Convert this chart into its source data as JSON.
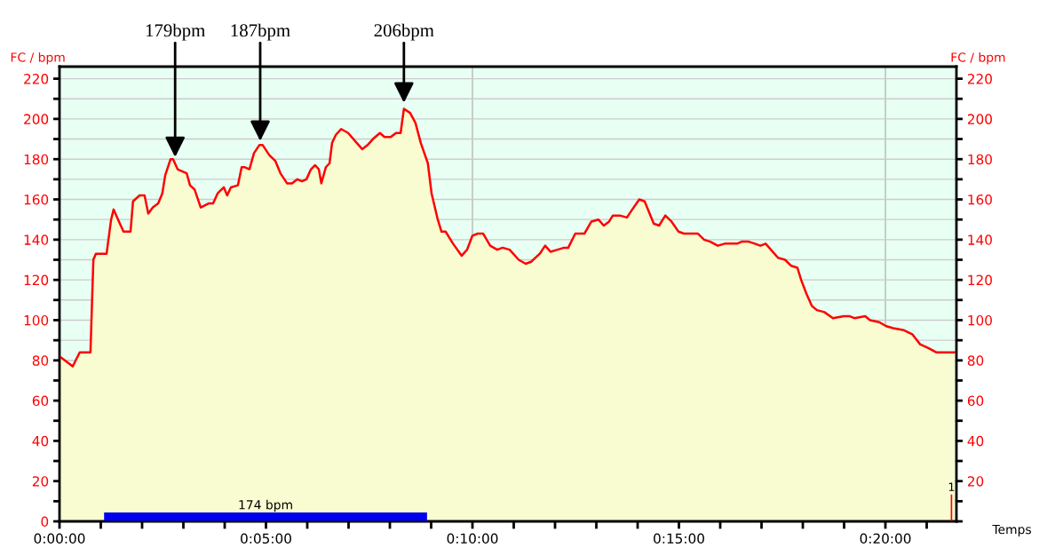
{
  "chart_data": {
    "type": "area",
    "ylabel": "FC / bpm",
    "y2label": "FC / bpm",
    "xlabel": "Temps",
    "x": [
      0,
      0.13,
      0.32,
      0.49,
      0.75,
      0.82,
      0.88,
      1.14,
      1.25,
      1.31,
      1.44,
      1.55,
      1.72,
      1.78,
      1.94,
      2.06,
      2.15,
      2.26,
      2.39,
      2.49,
      2.56,
      2.69,
      2.75,
      2.86,
      3.08,
      3.16,
      3.27,
      3.42,
      3.61,
      3.72,
      3.83,
      3.98,
      4.06,
      4.15,
      4.32,
      4.41,
      4.49,
      4.6,
      4.71,
      4.84,
      4.92,
      5.08,
      5.23,
      5.35,
      5.51,
      5.63,
      5.76,
      5.87,
      5.98,
      6.09,
      6.19,
      6.28,
      6.34,
      6.45,
      6.54,
      6.6,
      6.69,
      6.82,
      6.99,
      7.16,
      7.33,
      7.46,
      7.59,
      7.76,
      7.87,
      8.02,
      8.15,
      8.26,
      8.34,
      8.49,
      8.62,
      8.75,
      8.92,
      9.01,
      9.16,
      9.25,
      9.35,
      9.53,
      9.74,
      9.87,
      10.0,
      10.13,
      10.26,
      10.43,
      10.6,
      10.73,
      10.9,
      11.12,
      11.29,
      11.42,
      11.63,
      11.76,
      11.89,
      12.06,
      12.22,
      12.32,
      12.49,
      12.71,
      12.88,
      13.05,
      13.18,
      13.31,
      13.4,
      13.57,
      13.74,
      13.87,
      14.04,
      14.17,
      14.39,
      14.52,
      14.67,
      14.82,
      14.99,
      15.12,
      15.46,
      15.61,
      15.76,
      15.94,
      16.11,
      16.41,
      16.52,
      16.69,
      16.84,
      16.97,
      17.1,
      17.27,
      17.4,
      17.57,
      17.72,
      17.87,
      17.96,
      18.09,
      18.22,
      18.34,
      18.52,
      18.73,
      18.99,
      19.12,
      19.25,
      19.51,
      19.63,
      19.85,
      20.02,
      20.19,
      20.45,
      20.65,
      20.84,
      21.05,
      21.23,
      21.68
    ],
    "series": [
      {
        "color": "#ff0000",
        "values": [
          82,
          80,
          77,
          84,
          84,
          130,
          133,
          133,
          150,
          155,
          149,
          144,
          144,
          159,
          162,
          162,
          153,
          156,
          158,
          163,
          172,
          180,
          180,
          175,
          173,
          167,
          165,
          156,
          158,
          158,
          163,
          166,
          162,
          166,
          167,
          176,
          176,
          175,
          183,
          187,
          187,
          182,
          179,
          173,
          168,
          168,
          170,
          169,
          170,
          175,
          177,
          175,
          168,
          176,
          178,
          188,
          192,
          195,
          193,
          189,
          185,
          187,
          190,
          193,
          191,
          191,
          193,
          193,
          205,
          203,
          198,
          188,
          178,
          163,
          150,
          144,
          144,
          138,
          132,
          135,
          142,
          143,
          143,
          137,
          135,
          136,
          135,
          130,
          128,
          129,
          133,
          137,
          134,
          135,
          136,
          136,
          143,
          143,
          149,
          150,
          147,
          149,
          152,
          152,
          151,
          155,
          160,
          159,
          148,
          147,
          152,
          149,
          144,
          143,
          143,
          140,
          139,
          137,
          138,
          138,
          139,
          139,
          138,
          137,
          138,
          134,
          131,
          130,
          127,
          126,
          120,
          113,
          107,
          105,
          104,
          101,
          102,
          102,
          101,
          102,
          100,
          99,
          97,
          96,
          95,
          93,
          88,
          86,
          84,
          84
        ]
      },
      {
        "type": "line",
        "name": "174 bpm",
        "color": "#0000ee",
        "x": [
          1.08,
          8.9
        ],
        "values": [
          2.25,
          2.25
        ]
      }
    ],
    "xlim": [
      0,
      21.72
    ],
    "xticks": [
      {
        "value": 0,
        "label": "0:00:00"
      },
      {
        "value": 1,
        "label": null
      },
      {
        "value": 2,
        "label": null
      },
      {
        "value": 3,
        "label": null
      },
      {
        "value": 4,
        "label": null
      },
      {
        "value": 5,
        "label": "0:05:00"
      },
      {
        "value": 6,
        "label": null
      },
      {
        "value": 7,
        "label": null
      },
      {
        "value": 8,
        "label": null
      },
      {
        "value": 9,
        "label": null
      },
      {
        "value": 10,
        "label": "0:10:00"
      },
      {
        "value": 11,
        "label": null
      },
      {
        "value": 12,
        "label": null
      },
      {
        "value": 13,
        "label": null
      },
      {
        "value": 14,
        "label": null
      },
      {
        "value": 15,
        "label": "0:15:00"
      },
      {
        "value": 16,
        "label": null
      },
      {
        "value": 17,
        "label": null
      },
      {
        "value": 18,
        "label": null
      },
      {
        "value": 19,
        "label": null
      },
      {
        "value": 20,
        "label": "0:20:00"
      },
      {
        "value": 21,
        "label": null
      }
    ],
    "ylim": [
      0,
      226
    ],
    "yticks": [
      0,
      {
        "value": 10,
        "label": null
      },
      20,
      {
        "value": 30,
        "label": null
      },
      40,
      {
        "value": 50,
        "label": null
      },
      60,
      {
        "value": 70,
        "label": null
      },
      80,
      {
        "value": 90,
        "label": null
      },
      100,
      {
        "value": 110,
        "label": null
      },
      120,
      {
        "value": 130,
        "label": null
      },
      140,
      {
        "value": 150,
        "label": null
      },
      160,
      {
        "value": 170,
        "label": null
      },
      180,
      {
        "value": 190,
        "label": null
      },
      200,
      {
        "value": 210,
        "label": null
      },
      220
    ],
    "y2lim": [
      0,
      226
    ],
    "y2ticks": [
      {
        "value": 0,
        "label": null
      },
      {
        "value": 10,
        "label": null
      },
      20,
      {
        "value": 30,
        "label": null
      },
      40,
      {
        "value": 50,
        "label": null
      },
      60,
      {
        "value": 70,
        "label": null
      },
      80,
      {
        "value": 90,
        "label": null
      },
      100,
      {
        "value": 110,
        "label": null
      },
      120,
      {
        "value": 130,
        "label": null
      },
      140,
      {
        "value": 150,
        "label": null
      },
      160,
      {
        "value": 170,
        "label": null
      },
      180,
      {
        "value": 190,
        "label": null
      },
      200,
      {
        "value": 210,
        "label": null
      },
      220
    ],
    "grid": "y",
    "ref_lines": [
      {
        "axis": "x",
        "value": 10,
        "color": "#b8b8b8"
      },
      {
        "axis": "x",
        "value": 20,
        "color": "#b8b8b8"
      }
    ],
    "annotations": [
      {
        "text": "179bpm",
        "x": 2.8,
        "y": 179
      },
      {
        "text": "187bpm",
        "x": 4.86,
        "y": 187
      },
      {
        "text": "206bpm",
        "x": 8.34,
        "y": 206
      },
      {
        "text": "1",
        "x": 21.6,
        "y": 13
      }
    ]
  }
}
